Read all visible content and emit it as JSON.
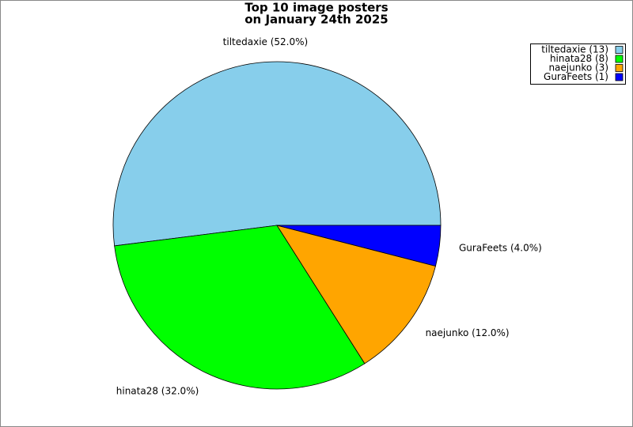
{
  "chart_data": {
    "type": "pie",
    "title": [
      "Top 10 image posters",
      "on January 24th 2025"
    ],
    "categories": [
      "tiltedaxie",
      "hinata28",
      "naejunko",
      "GuraFeets"
    ],
    "values": [
      52,
      32,
      12,
      4
    ],
    "value_labels": [
      "tiltedaxie (52.0%)",
      "hinata28 (32.0%)",
      "naejunko (12.0%)",
      "GuraFeets (4.0%)"
    ],
    "legend": [
      "tiltedaxie (13)",
      "hinata28 (8)",
      "naejunko (3)",
      "GuraFeets (1)"
    ],
    "colors": [
      "#87ceeb",
      "#00ff00",
      "#ffa500",
      "#0000ff"
    ],
    "legend_position": "upper right"
  }
}
